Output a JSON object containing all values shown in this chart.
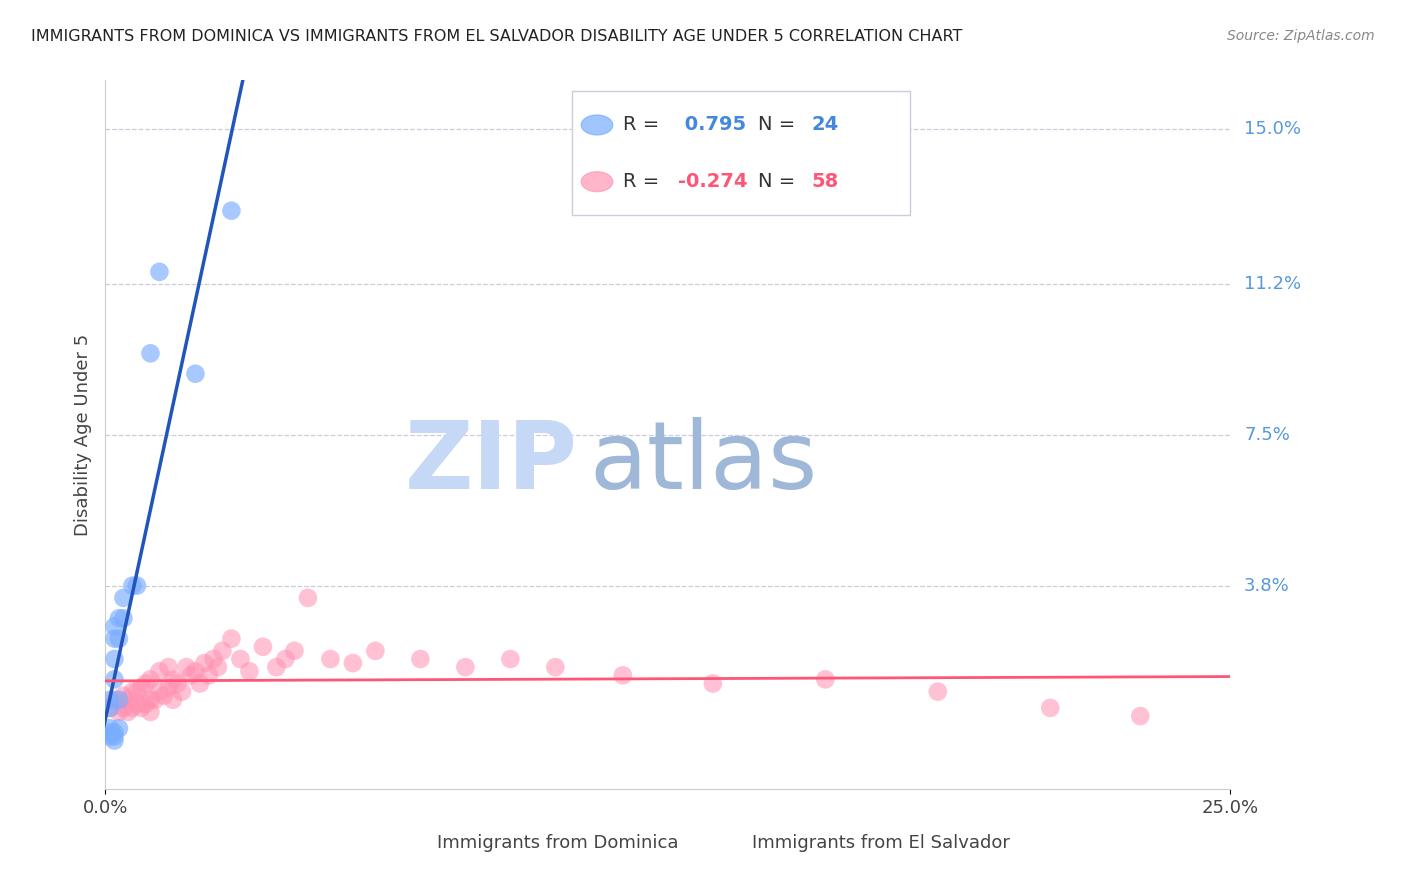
{
  "title": "IMMIGRANTS FROM DOMINICA VS IMMIGRANTS FROM EL SALVADOR DISABILITY AGE UNDER 5 CORRELATION CHART",
  "source": "Source: ZipAtlas.com",
  "ylabel": "Disability Age Under 5",
  "ytick_labels": [
    "15.0%",
    "11.2%",
    "7.5%",
    "3.8%"
  ],
  "ytick_values": [
    0.15,
    0.112,
    0.075,
    0.038
  ],
  "xlim": [
    0.0,
    0.25
  ],
  "ylim": [
    -0.012,
    0.162
  ],
  "dominica_R": 0.795,
  "dominica_N": 24,
  "elsalvador_R": -0.274,
  "elsalvador_N": 58,
  "dominica_color": "#7AADFF",
  "elsalvador_color": "#FF8FAF",
  "dominica_line_color": "#2255BB",
  "elsalvador_line_color": "#FF5577",
  "watermark_zip": "#C5D8F5",
  "watermark_atlas": "#A0B8D8",
  "background_color": "#FFFFFF",
  "dominica_points_x": [
    0.001,
    0.001,
    0.001,
    0.001,
    0.001,
    0.002,
    0.002,
    0.002,
    0.002,
    0.002,
    0.002,
    0.002,
    0.003,
    0.003,
    0.003,
    0.003,
    0.004,
    0.004,
    0.006,
    0.007,
    0.01,
    0.012,
    0.02,
    0.028
  ],
  "dominica_points_y": [
    0.001,
    0.002,
    0.003,
    0.008,
    0.01,
    0.0,
    0.001,
    0.002,
    0.015,
    0.02,
    0.025,
    0.028,
    0.003,
    0.01,
    0.025,
    0.03,
    0.03,
    0.035,
    0.038,
    0.038,
    0.095,
    0.115,
    0.09,
    0.13
  ],
  "elsalvador_points_x": [
    0.001,
    0.002,
    0.003,
    0.004,
    0.004,
    0.005,
    0.005,
    0.006,
    0.006,
    0.007,
    0.007,
    0.008,
    0.008,
    0.009,
    0.009,
    0.01,
    0.01,
    0.01,
    0.011,
    0.012,
    0.012,
    0.013,
    0.014,
    0.014,
    0.015,
    0.015,
    0.016,
    0.017,
    0.018,
    0.019,
    0.02,
    0.021,
    0.022,
    0.023,
    0.024,
    0.025,
    0.026,
    0.028,
    0.03,
    0.032,
    0.035,
    0.038,
    0.04,
    0.042,
    0.045,
    0.05,
    0.055,
    0.06,
    0.07,
    0.08,
    0.09,
    0.1,
    0.115,
    0.135,
    0.16,
    0.185,
    0.21,
    0.23
  ],
  "elsalvador_points_y": [
    0.008,
    0.01,
    0.007,
    0.008,
    0.011,
    0.007,
    0.01,
    0.008,
    0.012,
    0.009,
    0.012,
    0.008,
    0.013,
    0.009,
    0.014,
    0.007,
    0.01,
    0.015,
    0.01,
    0.012,
    0.017,
    0.011,
    0.013,
    0.018,
    0.01,
    0.015,
    0.014,
    0.012,
    0.018,
    0.016,
    0.017,
    0.014,
    0.019,
    0.016,
    0.02,
    0.018,
    0.022,
    0.025,
    0.02,
    0.017,
    0.023,
    0.018,
    0.02,
    0.022,
    0.035,
    0.02,
    0.019,
    0.022,
    0.02,
    0.018,
    0.02,
    0.018,
    0.016,
    0.014,
    0.015,
    0.012,
    0.008,
    0.006
  ]
}
